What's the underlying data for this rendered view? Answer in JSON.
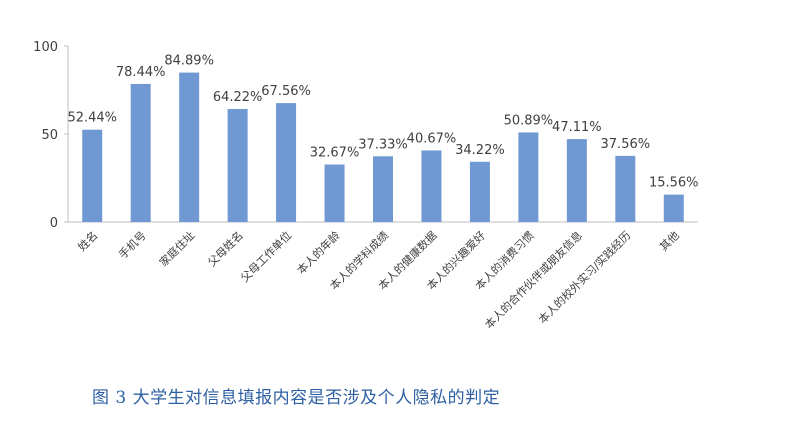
{
  "caption": "图 3 大学生对信息填报内容是否涉及个人隐私的判定",
  "chart_data": {
    "type": "bar",
    "title": "",
    "xlabel": "",
    "ylabel": "",
    "ylim": [
      0,
      100
    ],
    "yticks": [
      0,
      50,
      100
    ],
    "grid": false,
    "bar_color": "#7099d3",
    "categories": [
      "姓名",
      "手机号",
      "家庭住址",
      "父母姓名",
      "父母工作单位",
      "本人的年龄",
      "本人的学科成绩",
      "本人的健康数据",
      "本人的兴趣爱好",
      "本人的消费习惯",
      "本人的合作伙伴或朋友信息",
      "本人的校外实习/实践经历",
      "其他"
    ],
    "values": [
      52.44,
      78.44,
      84.89,
      64.22,
      67.56,
      32.67,
      37.33,
      40.67,
      34.22,
      50.89,
      47.11,
      37.56,
      15.56
    ],
    "data_labels": [
      "52.44%",
      "78.44%",
      "84.89%",
      "64.22%",
      "67.56%",
      "32.67%",
      "37.33%",
      "40.67%",
      "34.22%",
      "50.89%",
      "47.11%",
      "37.56%",
      "15.56%"
    ]
  }
}
